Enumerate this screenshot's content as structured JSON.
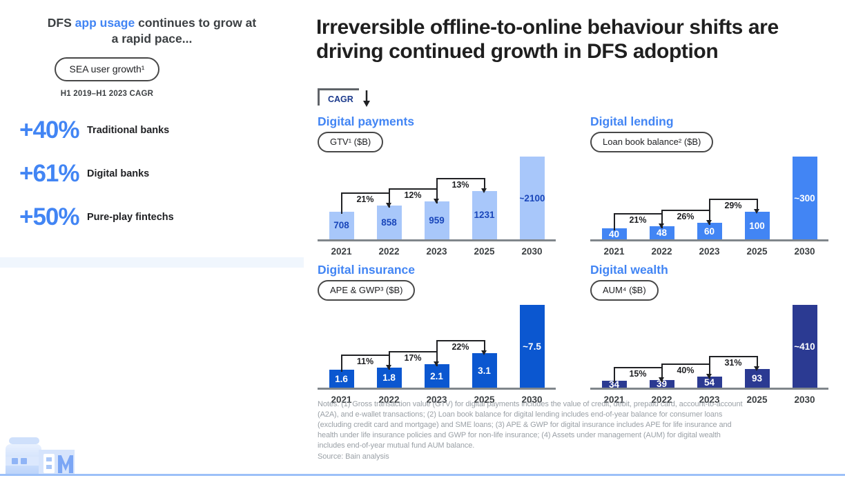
{
  "sidebar": {
    "headline_pre": "DFS ",
    "headline_highlight": "app usage",
    "headline_post": " continues to grow at a rapid pace...",
    "pill": "SEA user growth¹",
    "subtitle": "H1 2019–H1 2023 CAGR",
    "stats": [
      {
        "value": "+40%",
        "label": "Traditional banks"
      },
      {
        "value": "+61%",
        "label": "Digital banks"
      },
      {
        "value": "+50%",
        "label": "Pure-play fintechs"
      }
    ]
  },
  "main": {
    "title": "Irreversible offline-to-online behaviour shifts are driving continued growth in DFS adoption",
    "cagr_legend": "CAGR",
    "notes": "Notes: (1) Gross transaction value (GTV) for digital payments includes the value of credit, debit, prepaid card, account-to-account (A2A), and e-wallet transactions; (2) Loan book balance for digital lending includes end-of-year balance for consumer loans (excluding credit card and mortgage) and SME loans; (3) APE & GWP for digital insurance includes APE for life insurance and health under life insurance policies and GWP for non-life insurance; (4) Assets under management (AUM) for digital wealth includes end-of-year mutual fund AUM balance.",
    "source": "Source: Bain analysis"
  },
  "colors": {
    "accent_blue": "#4285f4",
    "payments_bar": "#a8c7fa",
    "lending_bar": "#4285f4",
    "insurance_bar": "#0b57d0",
    "wealth_bar": "#2b3a92",
    "bracket": "#202124",
    "notes_gray": "#9aa0a6",
    "bottom_rule": "#9cc0f8"
  },
  "chart_data": [
    {
      "type": "bar",
      "title": "Digital payments",
      "metric_pill": "GTV¹ ($B)",
      "categories": [
        "2021",
        "2022",
        "2023",
        "2025",
        "2030"
      ],
      "values": [
        708,
        858,
        959,
        1231,
        2100
      ],
      "value_labels": [
        "708",
        "858",
        "959",
        "1231",
        "~2100"
      ],
      "cagr_labels": [
        "21%",
        "12%",
        "13%"
      ],
      "ylim": [
        0,
        2100
      ],
      "bar_color": "#a8c7fa",
      "value_label_color": "#1946ba"
    },
    {
      "type": "bar",
      "title": "Digital lending",
      "metric_pill": "Loan book balance² ($B)",
      "categories": [
        "2021",
        "2022",
        "2023",
        "2025",
        "2030"
      ],
      "values": [
        40,
        48,
        60,
        100,
        300
      ],
      "value_labels": [
        "40",
        "48",
        "60",
        "100",
        "~300"
      ],
      "cagr_labels": [
        "21%",
        "26%",
        "29%"
      ],
      "ylim": [
        0,
        300
      ],
      "bar_color": "#4285f4",
      "value_label_color": "#ffffff"
    },
    {
      "type": "bar",
      "title": "Digital insurance",
      "metric_pill": "APE & GWP³ ($B)",
      "categories": [
        "2021",
        "2022",
        "2023",
        "2025",
        "2030"
      ],
      "values": [
        1.6,
        1.8,
        2.1,
        3.1,
        7.5
      ],
      "value_labels": [
        "1.6",
        "1.8",
        "2.1",
        "3.1",
        "~7.5"
      ],
      "cagr_labels": [
        "11%",
        "17%",
        "22%"
      ],
      "ylim": [
        0,
        7.5
      ],
      "bar_color": "#0b57d0",
      "value_label_color": "#ffffff"
    },
    {
      "type": "bar",
      "title": "Digital wealth",
      "metric_pill": "AUM⁴ ($B)",
      "categories": [
        "2021",
        "2022",
        "2023",
        "2025",
        "2030"
      ],
      "values": [
        34,
        39,
        54,
        93,
        410
      ],
      "value_labels": [
        "34",
        "39",
        "54",
        "93",
        "~410"
      ],
      "cagr_labels": [
        "15%",
        "40%",
        "31%"
      ],
      "ylim": [
        0,
        410
      ],
      "bar_color": "#2b3a92",
      "value_label_color": "#ffffff"
    }
  ]
}
